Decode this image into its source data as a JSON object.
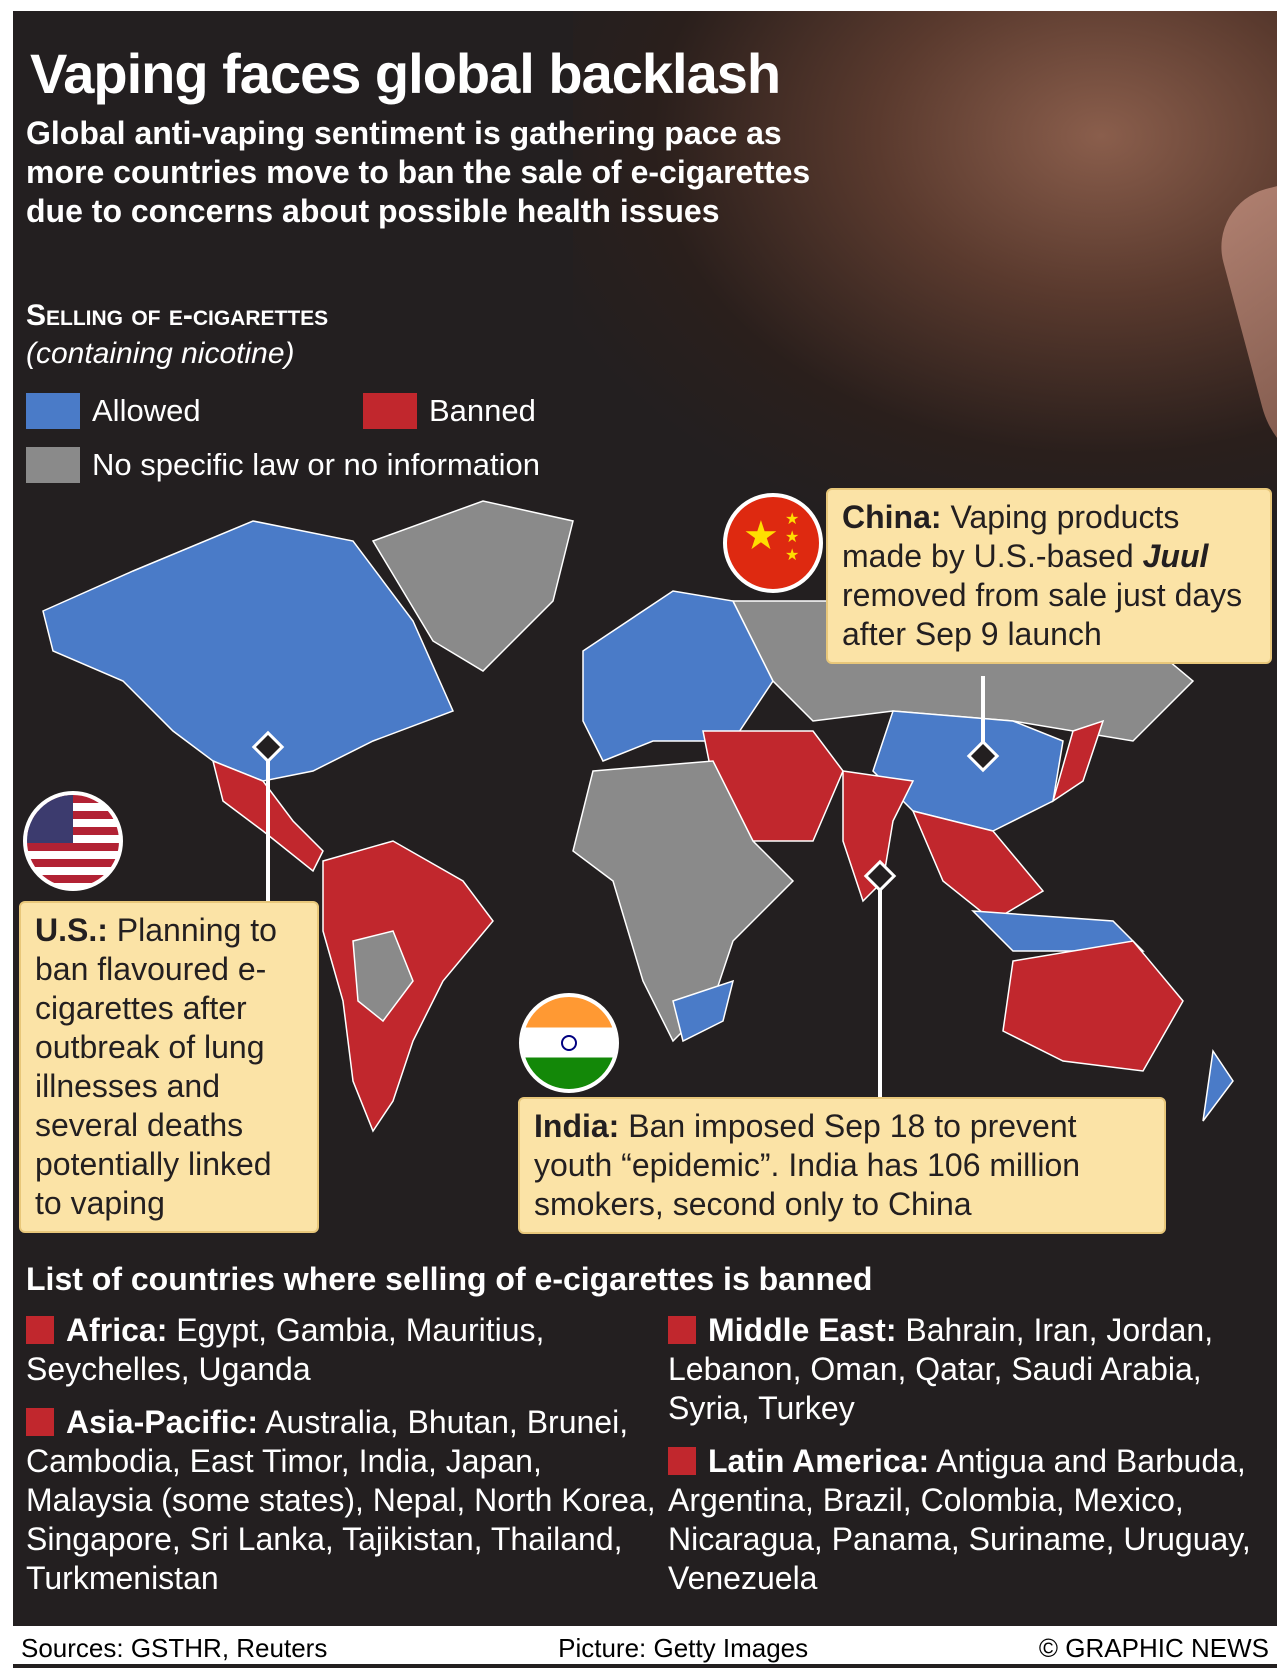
{
  "title": "Vaping faces global backlash",
  "subtitle": "Global anti-vaping sentiment is gathering pace as more countries move to ban the sale of e-cigarettes due to concerns about possible health issues",
  "legend": {
    "heading": "Selling of e-cigarettes",
    "note": "(containing nicotine)",
    "items": [
      {
        "label": "Allowed",
        "color": "#4a7bc8"
      },
      {
        "label": "Banned",
        "color": "#c1272d"
      },
      {
        "label": "No specific law or no information",
        "color": "#8a8a8a"
      }
    ]
  },
  "callouts": {
    "china": {
      "lead": "China:",
      "text": " Vaping products made by U.S.-based ",
      "em": "Juul",
      "tail": " removed from sale just days after Sep 9 launch"
    },
    "us": {
      "lead": "U.S.:",
      "text": " Planning to ban flavoured e-cigarettes after outbreak of lung illnesses and several deaths potentially linked to vaping"
    },
    "india": {
      "lead": "India:",
      "text": " Ban imposed Sep 18 to prevent youth “epidemic”. India has 106 million smokers, second only to China"
    }
  },
  "list": {
    "heading": "List of countries where selling of e-cigarettes is banned",
    "regions": [
      {
        "name": "Africa:",
        "countries": " Egypt, Gambia, Mauritius, Seychelles, Uganda"
      },
      {
        "name": "Asia-Pacific:",
        "countries": " Australia, Bhutan, Brunei, Cambodia, East Timor, India, Japan, Malaysia (some states), Nepal, North Korea, Singapore, Sri Lanka, Tajikistan, Thailand, Turkmenistan"
      },
      {
        "name": "Middle East:",
        "countries": " Bahrain, Iran, Jordan, Lebanon, Oman, Qatar, Saudi Arabia, Syria, Turkey"
      },
      {
        "name": "Latin America:",
        "countries": " Antigua and Barbuda, Argentina, Brazil, Colombia, Mexico, Nicaragua, Panama, Suriname, Uruguay, Venezuela"
      }
    ]
  },
  "footer": {
    "sources": "Sources: GSTHR, Reuters",
    "picture": "Picture: Getty Images",
    "copyright": "© GRAPHIC NEWS"
  }
}
